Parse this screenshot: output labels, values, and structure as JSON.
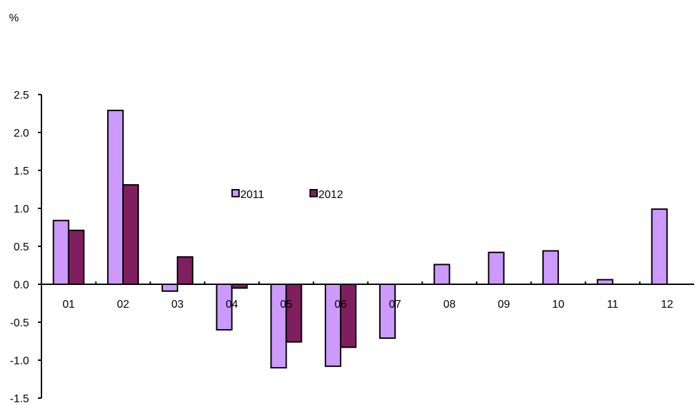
{
  "chart_data": {
    "type": "bar",
    "ylabel": "%",
    "categories": [
      "01",
      "02",
      "03",
      "04",
      "05",
      "06",
      "07",
      "08",
      "09",
      "10",
      "11",
      "12"
    ],
    "series": [
      {
        "name": "2011",
        "color": "#CC99FF",
        "values": [
          0.84,
          2.29,
          -0.09,
          -0.6,
          -1.1,
          -1.08,
          -0.71,
          0.26,
          0.42,
          0.44,
          0.06,
          0.99
        ]
      },
      {
        "name": "2012",
        "color": "#7F1F5F",
        "values": [
          0.71,
          1.31,
          0.36,
          -0.05,
          -0.76,
          -0.83,
          null,
          null,
          null,
          null,
          null,
          null
        ]
      }
    ],
    "yticks": [
      "2.5",
      "2.0",
      "1.5",
      "1.0",
      "0.5",
      "0.0",
      "-0.5",
      "-1.0",
      "-1.5"
    ],
    "ylim": [
      -1.5,
      2.5
    ],
    "grid": false,
    "legend": "inside-top-center"
  }
}
